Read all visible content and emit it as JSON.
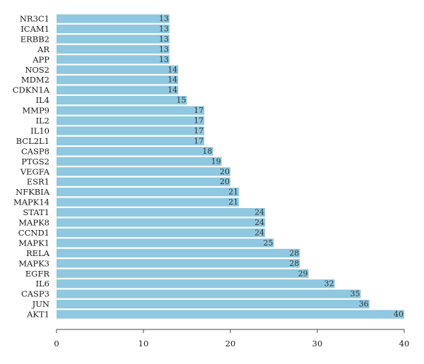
{
  "chart_data": {
    "type": "bar",
    "orientation": "horizontal",
    "categories": [
      "NR3C1",
      "ICAM1",
      "ERBB2",
      "AR",
      "APP",
      "NOS2",
      "MDM2",
      "CDKN1A",
      "IL4",
      "MMP9",
      "IL2",
      "IL10",
      "BCL2L1",
      "CASP8",
      "PTGS2",
      "VEGFA",
      "ESR1",
      "NFKBIA",
      "MAPK14",
      "STAT1",
      "MAPK8",
      "CCND1",
      "MAPK1",
      "RELA",
      "MAPK3",
      "EGFR",
      "IL6",
      "CASP3",
      "JUN",
      "AKT1"
    ],
    "values": [
      13,
      13,
      13,
      13,
      13,
      14,
      14,
      14,
      15,
      17,
      17,
      17,
      17,
      18,
      19,
      20,
      20,
      21,
      21,
      24,
      24,
      24,
      25,
      28,
      28,
      29,
      32,
      35,
      36,
      40
    ],
    "xlim": [
      0,
      40
    ],
    "xticks": [
      0,
      10,
      20,
      30,
      40
    ],
    "title": "",
    "xlabel": "",
    "ylabel": "",
    "bar_color": "#8fc8e0",
    "grid": false,
    "legend": "none"
  }
}
